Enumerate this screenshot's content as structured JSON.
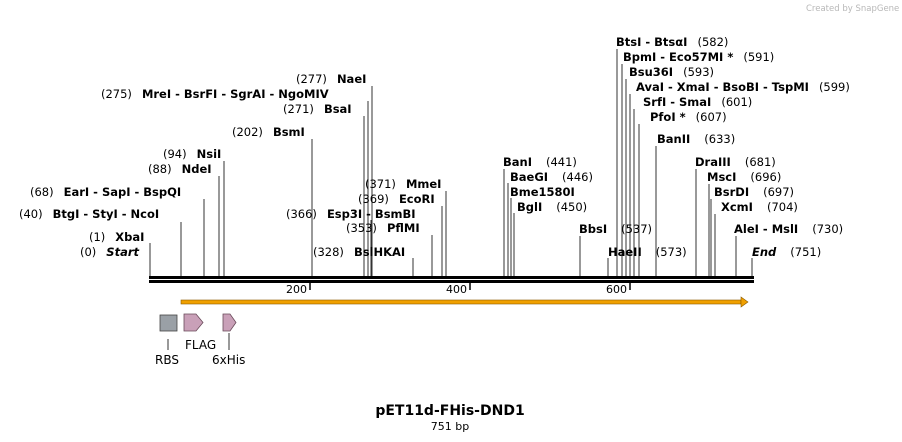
{
  "credit": "Created by SnapGene",
  "title": "pET11d-FHis-DND1",
  "length_label": "751 bp",
  "sequence_length": 751,
  "ticks": [
    "200",
    "400",
    "600"
  ],
  "sites": [
    {
      "text": "Start",
      "pos": "(0)",
      "kind": "end"
    },
    {
      "text": "XbaI",
      "pos": "(1)"
    },
    {
      "text": "BtgI  - StyI  - NcoI",
      "pos": "(40)"
    },
    {
      "text": "EarI  - SapI  - BspQI",
      "pos": "(68)"
    },
    {
      "text": "NdeI",
      "pos": "(88)"
    },
    {
      "text": "NsiI",
      "pos": "(94)"
    },
    {
      "text": "BsmI",
      "pos": "(202)"
    },
    {
      "text": "MreI  - BsrFI  - SgrAI  - NgoMIV",
      "pos": "(275)"
    },
    {
      "text": "NaeI",
      "pos": "(277)"
    },
    {
      "text": "BsaI",
      "pos": "(271)"
    },
    {
      "text": "BslHKAI",
      "pos": "(328)"
    },
    {
      "text": "PflMI",
      "pos": "(353)"
    },
    {
      "text": "Esp3I  - BsmBI",
      "pos": "(366)"
    },
    {
      "text": "EcoRI",
      "pos": "(369)"
    },
    {
      "text": "MmeI",
      "pos": "(371)"
    },
    {
      "text": "BanI",
      "pos": "(441)"
    },
    {
      "text": "BaeGI",
      "pos": "(446)"
    },
    {
      "text": "Bme1580I",
      "pos": ""
    },
    {
      "text": "BglI",
      "pos": "(450)"
    },
    {
      "text": "BbsI",
      "pos": "(537)"
    },
    {
      "text": "HaeII",
      "pos": "(573)"
    },
    {
      "text": "BtsI  - BtsαI",
      "pos": "(582)"
    },
    {
      "text": "BpmI  - Eco57MI *",
      "pos": "(591)"
    },
    {
      "text": "Bsu36I",
      "pos": "(593)"
    },
    {
      "text": "AvaI  - XmaI  - BsoBI  - TspMI",
      "pos": "(599)"
    },
    {
      "text": "SrfI  - SmaI",
      "pos": "(601)"
    },
    {
      "text": "PfoI *",
      "pos": "(607)"
    },
    {
      "text": "BanII",
      "pos": "(633)"
    },
    {
      "text": "DraIII",
      "pos": "(681)"
    },
    {
      "text": "MscI",
      "pos": "(696)"
    },
    {
      "text": "BsrDI",
      "pos": "(697)"
    },
    {
      "text": "XcmI",
      "pos": "(704)"
    },
    {
      "text": "AleI  - MslI",
      "pos": "(730)"
    },
    {
      "text": "End",
      "pos": "(751)",
      "kind": "end"
    }
  ],
  "features": [
    {
      "name": "RBS",
      "color": "#9aa0a6"
    },
    {
      "name": "FLAG",
      "color": "#c9a0b8"
    },
    {
      "name": "6xHis",
      "color": "#c9a0b8"
    }
  ],
  "orf": {
    "color": "#f0a000"
  }
}
